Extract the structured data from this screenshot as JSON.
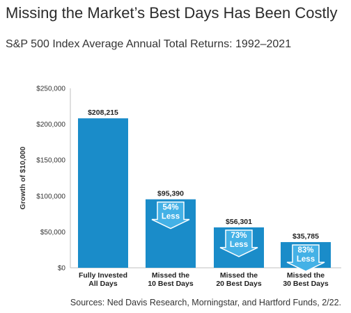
{
  "title": "Missing the Market’s Best Days Has Been Costly",
  "subtitle": "S&P 500 Index Average Annual Total Returns: 1992–2021",
  "source": "Sources: Ned Davis Research, Morningstar, and Hartford Funds, 2/22.",
  "colors": {
    "bar": "#1a8cc9",
    "arrow_fill": "#44b1e6",
    "arrow_outline": "#ffffff"
  },
  "chart_data": {
    "type": "bar",
    "title": "",
    "ylabel": "Growth of $10,000",
    "xlabel": "",
    "ylim": [
      0,
      250000
    ],
    "yticks": [
      0,
      50000,
      100000,
      150000,
      200000,
      250000
    ],
    "ytick_labels": [
      "$0",
      "$50,000",
      "$100,000",
      "$150,000",
      "$200,000",
      "$250,000"
    ],
    "grid": false,
    "categories": [
      [
        "Fully Invested",
        "All Days"
      ],
      [
        "Missed the",
        "10 Best Days"
      ],
      [
        "Missed the",
        "20 Best Days"
      ],
      [
        "Missed the",
        "30 Best Days"
      ]
    ],
    "values": [
      208215,
      95390,
      56301,
      35785
    ],
    "data_labels": [
      "$208,215",
      "$95,390",
      "$56,301",
      "$35,785"
    ],
    "annotations": [
      null,
      {
        "percent": "54%",
        "text": "Less",
        "icon": "down-arrow-icon"
      },
      {
        "percent": "73%",
        "text": "Less",
        "icon": "down-arrow-icon"
      },
      {
        "percent": "83%",
        "text": "Less",
        "icon": "down-arrow-icon"
      }
    ]
  }
}
